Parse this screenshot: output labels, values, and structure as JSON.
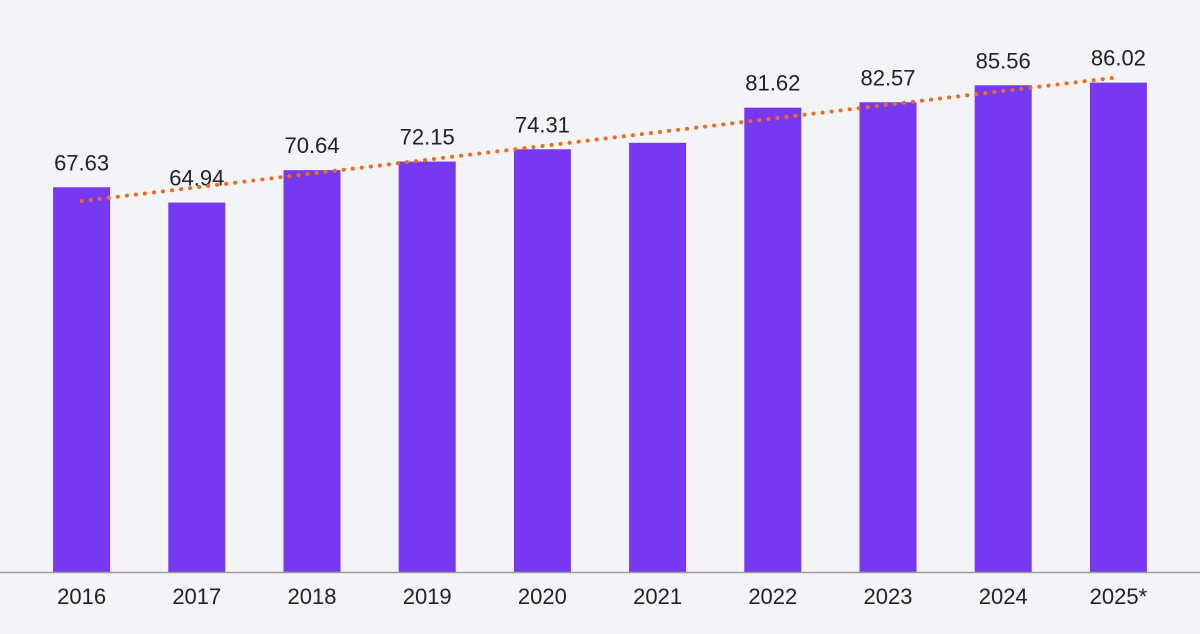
{
  "chart_data": {
    "type": "bar",
    "categories": [
      "2016",
      "2017",
      "2018",
      "2019",
      "2020",
      "2021",
      "2022",
      "2023",
      "2024",
      "2025*"
    ],
    "values": [
      67.63,
      64.94,
      70.64,
      72.15,
      74.31,
      75.45,
      81.62,
      82.57,
      85.56,
      86.02
    ],
    "data_labels": [
      "67.63",
      "64.94",
      "70.64",
      "72.15",
      "74.31",
      "",
      "81.62",
      "82.57",
      "85.56",
      "86.02"
    ],
    "trendline": {
      "type": "linear",
      "style": "dotted"
    },
    "title": "",
    "xlabel": "",
    "ylabel": "",
    "ylim": [
      0,
      90
    ],
    "grid": false,
    "legend": "none",
    "colors": {
      "bar": "#7638f0",
      "trendline": "#f06a1f",
      "axis": "#9a9a9a",
      "text": "#222222",
      "background": "#f2f4f8"
    }
  }
}
